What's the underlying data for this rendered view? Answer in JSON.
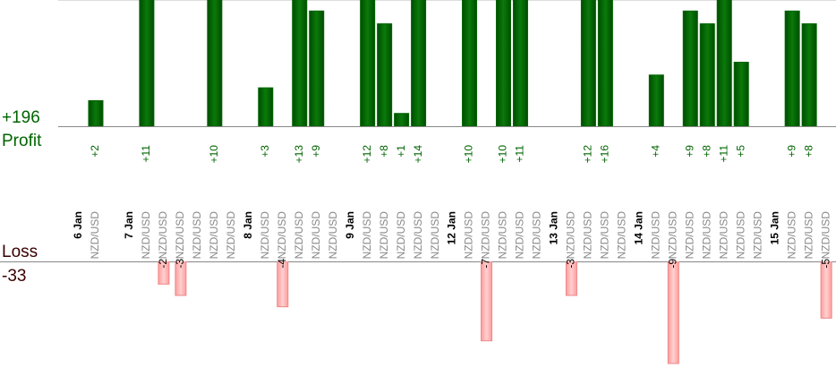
{
  "chart_data": {
    "type": "bar",
    "categories": [
      "6 Jan",
      "NZD/USD",
      null,
      "7 Jan",
      "NZD/USD",
      "NZD/USD",
      "NZD/USD",
      "NZD/USD",
      "NZD/USD",
      "NZD/USD",
      "8 Jan",
      "NZD/USD",
      "NZD/USD",
      "NZD/USD",
      "NZD/USD",
      "NZD/USD",
      "9 Jan",
      "NZD/USD",
      "NZD/USD",
      "NZD/USD",
      "NZD/USD",
      "NZD/USD",
      "12 Jan",
      "NZD/USD",
      "NZD/USD",
      "NZD/USD",
      "NZD/USD",
      "NZD/USD",
      "13 Jan",
      "NZD/USD",
      "NZD/USD",
      "NZD/USD",
      "NZD/USD",
      "14 Jan",
      "NZD/USD",
      "NZD/USD",
      "NZD/USD",
      "NZD/USD",
      "NZD/USD",
      "NZD/USD",
      "NZD/USD",
      "15 Jan",
      "NZD/USD",
      "NZD/USD",
      "NZD/USD"
    ],
    "series": [
      {
        "name": "Profit",
        "color": "#006400",
        "values": [
          null,
          2,
          null,
          null,
          11,
          null,
          null,
          null,
          10,
          null,
          null,
          3,
          null,
          13,
          9,
          null,
          null,
          12,
          8,
          1,
          14,
          null,
          null,
          10,
          null,
          10,
          11,
          null,
          null,
          null,
          12,
          16,
          null,
          null,
          4,
          null,
          9,
          8,
          11,
          5,
          null,
          null,
          9,
          8,
          null
        ],
        "value_labels": [
          null,
          "+2",
          null,
          null,
          "+11",
          null,
          null,
          null,
          "+10",
          null,
          null,
          "+3",
          null,
          "+13",
          "+9",
          null,
          null,
          "+12",
          "+8",
          "+1",
          "+14",
          null,
          null,
          "+10",
          null,
          "+10",
          "+11",
          null,
          null,
          null,
          "+12",
          "+16",
          null,
          null,
          "+4",
          null,
          "+9",
          "+8",
          "+11",
          "+5",
          null,
          null,
          "+9",
          "+8",
          null
        ]
      },
      {
        "name": "Loss",
        "color": "#ffb6b6",
        "values": [
          null,
          null,
          null,
          null,
          null,
          -2,
          -3,
          null,
          null,
          null,
          null,
          null,
          -4,
          null,
          null,
          null,
          null,
          null,
          null,
          null,
          null,
          null,
          null,
          null,
          -7,
          null,
          null,
          null,
          null,
          -3,
          null,
          null,
          null,
          null,
          null,
          -9,
          null,
          null,
          null,
          null,
          null,
          null,
          null,
          null,
          -5
        ]
      }
    ],
    "profit_total": "+196",
    "loss_total": "-33",
    "ylim": [
      0,
      9.86
    ],
    "y2lim": [
      -10.1,
      0
    ]
  }
}
